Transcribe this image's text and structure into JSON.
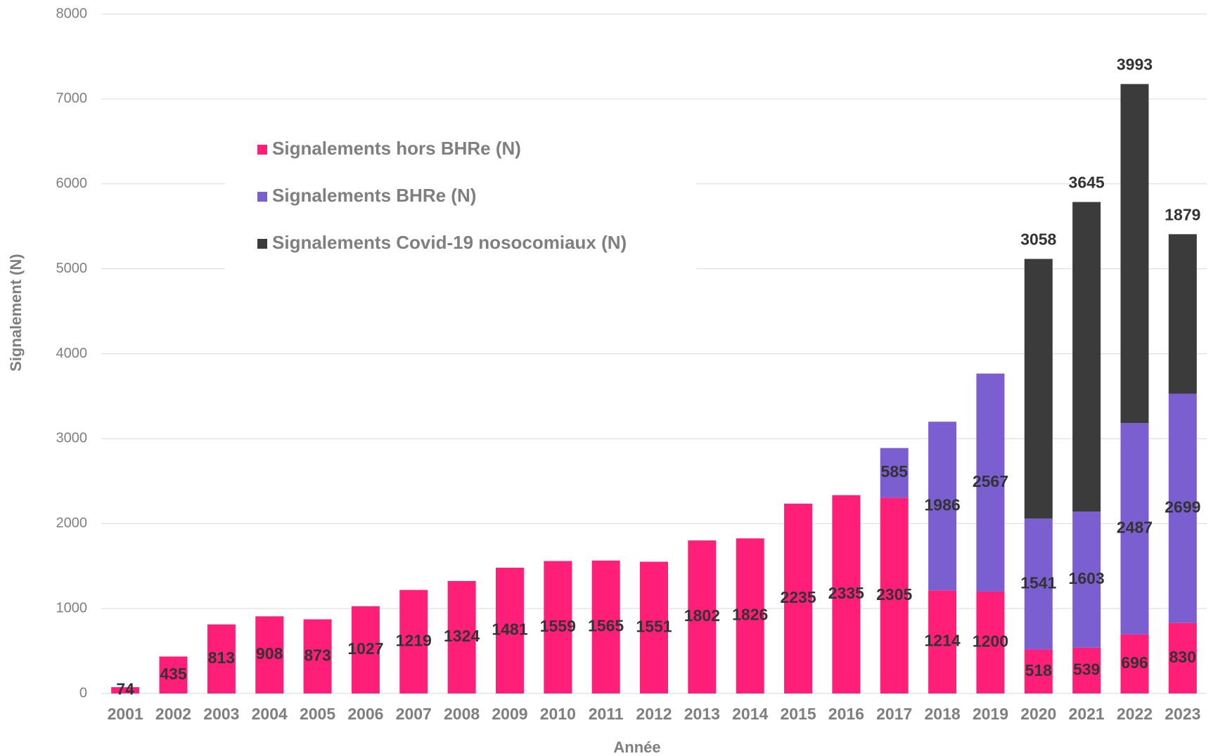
{
  "chart_data": {
    "type": "bar",
    "stacked": true,
    "x_label": "Année",
    "y_label": "Signalement (N)",
    "categories": [
      "2001",
      "2002",
      "2003",
      "2004",
      "2005",
      "2006",
      "2007",
      "2008",
      "2009",
      "2010",
      "2011",
      "2012",
      "2013",
      "2014",
      "2015",
      "2016",
      "2017",
      "2018",
      "2019",
      "2020",
      "2021",
      "2022",
      "2023"
    ],
    "series": [
      {
        "name": "Signalements hors BHRe (N)",
        "color": "#ff1f78",
        "values": [
          74,
          435,
          813,
          908,
          873,
          1027,
          1219,
          1324,
          1481,
          1559,
          1565,
          1551,
          1802,
          1826,
          2235,
          2335,
          2305,
          1214,
          1200,
          518,
          539,
          696,
          830
        ]
      },
      {
        "name": "Signalements BHRe (N)",
        "color": "#7b5fd0",
        "values": [
          null,
          null,
          null,
          null,
          null,
          null,
          null,
          null,
          null,
          null,
          null,
          null,
          null,
          null,
          null,
          null,
          585,
          1986,
          2567,
          1541,
          1603,
          2487,
          2699
        ]
      },
      {
        "name": "Signalements Covid-19 nosocomiaux (N)",
        "color": "#3b3b3b",
        "values": [
          null,
          null,
          null,
          null,
          null,
          null,
          null,
          null,
          null,
          null,
          null,
          null,
          null,
          null,
          null,
          null,
          null,
          null,
          null,
          3058,
          3645,
          3993,
          1879
        ]
      }
    ],
    "ylim": [
      0,
      8000
    ],
    "yticks": [
      0,
      1000,
      2000,
      3000,
      4000,
      5000,
      6000,
      7000,
      8000
    ],
    "grid": true,
    "legend": "upper left"
  }
}
